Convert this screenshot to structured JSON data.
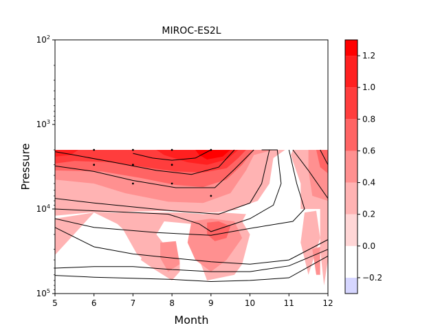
{
  "chart_data": {
    "type": "heatmap",
    "title": "MIROC-ES2L",
    "xlabel": "Month",
    "ylabel": "Pressure",
    "x_ticks": [
      5,
      6,
      7,
      8,
      9,
      10,
      11,
      12
    ],
    "xlim": [
      5,
      12
    ],
    "y_scale": "log",
    "y_inverted": true,
    "ylim": [
      100,
      100000
    ],
    "y_ticks": [
      {
        "value": 100,
        "base": "10",
        "exp": "2"
      },
      {
        "value": 1000,
        "base": "10",
        "exp": "3"
      },
      {
        "value": 10000,
        "base": "10",
        "exp": "4"
      },
      {
        "value": 100000,
        "base": "10",
        "exp": "5"
      }
    ],
    "data_top_pressure": 2000,
    "colorbar": {
      "levels": [
        -0.3,
        -0.2,
        0.0,
        0.2,
        0.4,
        0.6,
        0.8,
        1.0,
        1.2,
        1.3
      ],
      "colors": [
        "#d6d6ff",
        "#ffffff",
        "#ffd6d6",
        "#ffb3b3",
        "#ff9090",
        "#ff6464",
        "#ff3d3d",
        "#ff2020",
        "#ff0000"
      ],
      "tick_values": [
        -0.2,
        0.0,
        0.2,
        0.4,
        0.6,
        0.8,
        1.0,
        1.2
      ],
      "tick_labels": [
        "−0.2",
        "0.0",
        "0.2",
        "0.4",
        "0.6",
        "0.8",
        "1.0",
        "1.2"
      ]
    },
    "filled_regions": [
      {
        "level": 0.2,
        "points": [
          [
            5,
            2000
          ],
          [
            12,
            2000
          ],
          [
            12,
            10000
          ],
          [
            11.8,
            10000
          ],
          [
            11.3,
            10000
          ],
          [
            11.3,
            5000
          ],
          [
            11,
            2000
          ],
          [
            10.9,
            2000
          ],
          [
            10.6,
            2500
          ],
          [
            10.5,
            5000
          ],
          [
            10.2,
            8000
          ],
          [
            9.6,
            10000
          ],
          [
            5,
            10000
          ]
        ]
      },
      {
        "level": 0.2,
        "points": [
          [
            5,
            10000
          ],
          [
            9.8,
            10000
          ],
          [
            9.1,
            11000
          ],
          [
            8.6,
            11000
          ],
          [
            8,
            10500
          ],
          [
            5.9,
            11000
          ],
          [
            5,
            12000
          ]
        ]
      },
      {
        "level": 0.2,
        "points": [
          [
            5,
            13000
          ],
          [
            6,
            11000
          ],
          [
            6.6,
            15000
          ],
          [
            7.3,
            30000
          ],
          [
            7.2,
            40000
          ],
          [
            7.5,
            50000
          ],
          [
            8,
            70000
          ],
          [
            8.2,
            55000
          ],
          [
            8.2,
            40000
          ],
          [
            7.9,
            30000
          ],
          [
            7.6,
            20000
          ],
          [
            7.8,
            14000
          ],
          [
            8.5,
            15000
          ],
          [
            8.6,
            30000
          ],
          [
            8.9,
            70000
          ],
          [
            9.6,
            60000
          ],
          [
            9.8,
            45000
          ],
          [
            10,
            20000
          ],
          [
            9.8,
            14000
          ],
          [
            9.9,
            11500
          ],
          [
            9.3,
            11000
          ],
          [
            8.8,
            11500
          ],
          [
            8.3,
            11000
          ],
          [
            7.1,
            11000
          ],
          [
            6,
            11000
          ],
          [
            5,
            35000
          ]
        ]
      },
      {
        "level": 0.2,
        "points": [
          [
            6.7,
            16000
          ],
          [
            7.2,
            19000
          ],
          [
            7.6,
            28000
          ],
          [
            7.5,
            48000
          ],
          [
            7.1,
            34000
          ]
        ]
      },
      {
        "level": 0.2,
        "points": [
          [
            11.4,
            11000
          ],
          [
            11.7,
            10500
          ],
          [
            11.8,
            22000
          ],
          [
            11.5,
            60000
          ],
          [
            11.3,
            25000
          ]
        ]
      },
      {
        "level": 0.2,
        "points": [
          [
            11.8,
            10000
          ],
          [
            12,
            10000
          ],
          [
            12,
            40000
          ],
          [
            11.9,
            80000
          ],
          [
            11.8,
            30000
          ]
        ]
      },
      {
        "level": 0.4,
        "points": [
          [
            5,
            2000
          ],
          [
            10.6,
            2000
          ],
          [
            10.1,
            2300
          ],
          [
            9.9,
            3500
          ],
          [
            9.5,
            6500
          ],
          [
            8.8,
            8500
          ],
          [
            7.9,
            8200
          ],
          [
            6.8,
            6500
          ],
          [
            6,
            5000
          ],
          [
            5,
            4500
          ]
        ]
      },
      {
        "level": 0.4,
        "points": [
          [
            11.5,
            2000
          ],
          [
            12,
            2000
          ],
          [
            12,
            8000
          ],
          [
            11.6,
            7000
          ],
          [
            11.5,
            3500
          ]
        ]
      },
      {
        "level": 0.4,
        "points": [
          [
            8.5,
            14000
          ],
          [
            9,
            13000
          ],
          [
            9.6,
            14000
          ],
          [
            9.8,
            22000
          ],
          [
            9.4,
            40000
          ],
          [
            9,
            55000
          ],
          [
            8.6,
            40000
          ],
          [
            8.4,
            25000
          ]
        ]
      },
      {
        "level": 0.4,
        "points": [
          [
            7.7,
            25000
          ],
          [
            8.1,
            24000
          ],
          [
            8.2,
            45000
          ],
          [
            7.9,
            55000
          ],
          [
            7.7,
            38000
          ]
        ]
      },
      {
        "level": 0.4,
        "points": [
          [
            11.6,
            30000
          ],
          [
            11.8,
            28000
          ],
          [
            11.8,
            60000
          ],
          [
            11.7,
            60000
          ]
        ]
      },
      {
        "level": 0.6,
        "points": [
          [
            5,
            2000
          ],
          [
            10.1,
            2000
          ],
          [
            9.8,
            3000
          ],
          [
            9.4,
            4500
          ],
          [
            8.8,
            5500
          ],
          [
            8.1,
            5200
          ],
          [
            7.2,
            4300
          ],
          [
            6.2,
            3600
          ],
          [
            5,
            3500
          ]
        ]
      },
      {
        "level": 0.6,
        "points": [
          [
            11.7,
            2000
          ],
          [
            12,
            2000
          ],
          [
            12,
            3800
          ],
          [
            11.8,
            3200
          ]
        ]
      },
      {
        "level": 0.6,
        "points": [
          [
            8.9,
            14500
          ],
          [
            9.2,
            14000
          ],
          [
            9.5,
            16000
          ],
          [
            9.4,
            22000
          ],
          [
            9.1,
            24000
          ],
          [
            8.9,
            20000
          ]
        ]
      },
      {
        "level": 0.8,
        "points": [
          [
            5,
            2000
          ],
          [
            9.9,
            2000
          ],
          [
            9.7,
            2500
          ],
          [
            9.4,
            3300
          ],
          [
            8.8,
            3700
          ],
          [
            8.1,
            3600
          ],
          [
            7.3,
            3200
          ],
          [
            6.4,
            2800
          ],
          [
            5.5,
            2700
          ],
          [
            5,
            2900
          ]
        ]
      },
      {
        "level": 1.0,
        "points": [
          [
            5,
            2000
          ],
          [
            5.6,
            2000
          ],
          [
            5.4,
            2300
          ],
          [
            5,
            2400
          ]
        ]
      },
      {
        "level": 1.0,
        "points": [
          [
            7.6,
            2000
          ],
          [
            9.7,
            2000
          ],
          [
            9.4,
            2600
          ],
          [
            8.9,
            3000
          ],
          [
            8.4,
            2800
          ],
          [
            7.8,
            2300
          ]
        ]
      },
      {
        "level": 1.2,
        "points": [
          [
            8.6,
            2000
          ],
          [
            9.5,
            2000
          ],
          [
            9.3,
            2400
          ],
          [
            8.9,
            2600
          ],
          [
            8.7,
            2300
          ]
        ]
      },
      {
        "level": -0.2,
        "points": [
          [
            10.9,
            2000
          ],
          [
            11.1,
            2000
          ],
          [
            11,
            2600
          ]
        ]
      },
      {
        "level": -0.2,
        "points": [
          [
            10,
            23000
          ],
          [
            10.3,
            27000
          ],
          [
            10.1,
            33000
          ],
          [
            10,
            30000
          ]
        ]
      },
      {
        "level": -0.2,
        "points": [
          [
            10,
            82000
          ],
          [
            10.3,
            88000
          ],
          [
            10.1,
            90000
          ]
        ]
      }
    ],
    "contour_lines": [
      [
        [
          9,
          2000
        ],
        [
          8.6,
          2500
        ],
        [
          8,
          2650
        ],
        [
          7.5,
          2500
        ],
        [
          7,
          2200
        ]
      ],
      [
        [
          9.6,
          2000
        ],
        [
          9.2,
          3200
        ],
        [
          8.5,
          3900
        ],
        [
          7.6,
          3500
        ],
        [
          6.5,
          2800
        ],
        [
          5.5,
          2300
        ],
        [
          5,
          2100
        ]
      ],
      [
        [
          10.1,
          2000
        ],
        [
          9.6,
          3400
        ],
        [
          9.1,
          5600
        ],
        [
          8.1,
          5600
        ],
        [
          7,
          4600
        ],
        [
          6,
          3600
        ],
        [
          5,
          3100
        ]
      ],
      [
        [
          10.5,
          2000
        ],
        [
          10.3,
          5000
        ],
        [
          10,
          8500
        ],
        [
          9.2,
          11500
        ],
        [
          8,
          10500
        ],
        [
          6,
          8500
        ],
        [
          5,
          7500
        ]
      ],
      [
        [
          10.3,
          2000
        ],
        [
          10.7,
          2000
        ],
        [
          10.8,
          5000
        ],
        [
          10.6,
          9000
        ],
        [
          10,
          13000
        ],
        [
          9,
          18500
        ],
        [
          8.7,
          15000
        ],
        [
          7.9,
          11500
        ],
        [
          7,
          11000
        ],
        [
          6,
          10500
        ],
        [
          5,
          10000
        ]
      ],
      [
        [
          11,
          2000
        ],
        [
          11.2,
          5000
        ],
        [
          11.4,
          10000
        ],
        [
          11.1,
          14000
        ],
        [
          10,
          17000
        ],
        [
          9,
          20500
        ],
        [
          7.6,
          19000
        ],
        [
          6,
          16500
        ],
        [
          5,
          13000
        ]
      ],
      [
        [
          11.8,
          2000
        ],
        [
          12,
          3000
        ]
      ],
      [
        [
          11.1,
          2000
        ],
        [
          11.5,
          3500
        ],
        [
          12,
          7500
        ]
      ],
      [
        [
          5,
          16500
        ],
        [
          6,
          28000
        ],
        [
          7,
          34000
        ],
        [
          8,
          38000
        ],
        [
          9,
          42000
        ],
        [
          10,
          45000
        ],
        [
          11,
          40000
        ],
        [
          12,
          23000
        ]
      ],
      [
        [
          5,
          50000
        ],
        [
          6,
          48000
        ],
        [
          7,
          48000
        ],
        [
          8,
          52000
        ],
        [
          9,
          55000
        ],
        [
          10,
          55000
        ],
        [
          11,
          47000
        ],
        [
          12,
          30000
        ]
      ],
      [
        [
          5,
          61000
        ],
        [
          6,
          64000
        ],
        [
          7,
          66000
        ],
        [
          8,
          68000
        ],
        [
          9,
          72000
        ],
        [
          10,
          70000
        ],
        [
          11,
          65000
        ],
        [
          12,
          36000
        ]
      ]
    ],
    "stipple_points": [
      [
        6,
        2000
      ],
      [
        7,
        2000
      ],
      [
        8,
        2000
      ],
      [
        9,
        2000
      ],
      [
        6,
        3000
      ],
      [
        7,
        3000
      ],
      [
        8,
        3000
      ],
      [
        7,
        5000
      ],
      [
        8,
        5000
      ],
      [
        9,
        7000
      ]
    ]
  }
}
